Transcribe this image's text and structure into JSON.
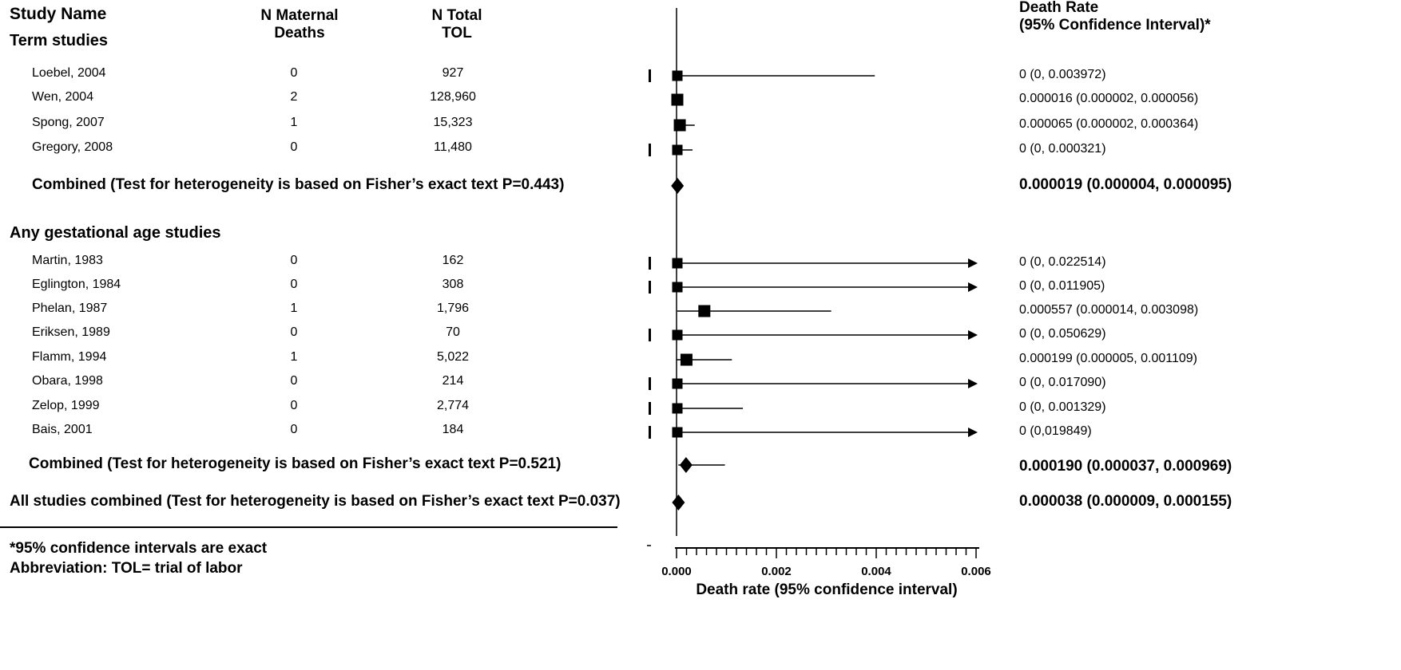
{
  "headers": {
    "study_name": "Study Name",
    "n_maternal_deaths": [
      "N Maternal",
      "Deaths"
    ],
    "n_total_tol": [
      "N Total",
      "TOL"
    ],
    "death_rate": [
      "Death Rate",
      "(95% Confidence Interval)*"
    ]
  },
  "sections": {
    "term": "Term studies",
    "any": "Any gestational age studies"
  },
  "combined_labels": {
    "term": "Combined (Test for heterogeneity is based on Fisher’s exact text P=0.443)",
    "any": "Combined (Test for heterogeneity is based on Fisher’s exact text P=0.521)",
    "all": "All studies combined (Test for heterogeneity is based on Fisher’s exact text P=0.037)"
  },
  "footnotes": [
    "*95% confidence intervals are exact",
    "Abbreviation: TOL= trial of labor"
  ],
  "chart_data": {
    "type": "forest",
    "xlabel": "Death rate  (95% confidence interval)",
    "xlim": [
      0,
      0.006
    ],
    "xticks": [
      "0.000",
      "0.002",
      "0.004",
      "0.006"
    ],
    "minor_tick_step": 0.0002,
    "studies": [
      {
        "study": "Loebel, 2004",
        "deaths": "0",
        "tol": "927",
        "rate": 0,
        "lo": 0,
        "hi": 0.003972,
        "ci_text": "0 (0, 0.003972)",
        "group": "term",
        "arrow": false
      },
      {
        "study": "Wen,  2004",
        "deaths": "2",
        "tol": "128,960",
        "rate": 1.6e-05,
        "lo": 2e-06,
        "hi": 5.6e-05,
        "ci_text": "0.000016 (0.000002,  0.000056)",
        "group": "term",
        "arrow": false
      },
      {
        "study": "Spong, 2007",
        "deaths": "1",
        "tol": "15,323",
        "rate": 6.5e-05,
        "lo": 2e-06,
        "hi": 0.000364,
        "ci_text": "0.000065 (0.000002,  0.000364)",
        "group": "term",
        "arrow": false
      },
      {
        "study": "Gregory, 2008",
        "deaths": "0",
        "tol": "11,480",
        "rate": 0,
        "lo": 0,
        "hi": 0.000321,
        "ci_text": "0 (0, 0.000321)",
        "group": "term",
        "arrow": false
      },
      {
        "study": "Martin, 1983",
        "deaths": "0",
        "tol": "162",
        "rate": 0,
        "lo": 0,
        "hi": 0.022514,
        "ci_text": "0 (0, 0.022514)",
        "group": "any",
        "arrow": true
      },
      {
        "study": "Eglington, 1984",
        "deaths": "0",
        "tol": "308",
        "rate": 0,
        "lo": 0,
        "hi": 0.011905,
        "ci_text": "0 (0, 0.011905)",
        "group": "any",
        "arrow": true
      },
      {
        "study": "Phelan, 1987",
        "deaths": "1",
        "tol": "1,796",
        "rate": 0.000557,
        "lo": 1.4e-05,
        "hi": 0.003098,
        "ci_text": "0.000557 (0.000014,  0.003098)",
        "group": "any",
        "arrow": false
      },
      {
        "study": "Eriksen, 1989",
        "deaths": "0",
        "tol": "70",
        "rate": 0,
        "lo": 0,
        "hi": 0.050629,
        "ci_text": "0 (0, 0.050629)",
        "group": "any",
        "arrow": true
      },
      {
        "study": "Flamm, 1994",
        "deaths": "1",
        "tol": "5,022",
        "rate": 0.000199,
        "lo": 5e-06,
        "hi": 0.001109,
        "ci_text": "0.000199 (0.000005,  0.001109)",
        "group": "any",
        "arrow": false
      },
      {
        "study": "Obara, 1998",
        "deaths": "0",
        "tol": "214",
        "rate": 0,
        "lo": 0,
        "hi": 0.01709,
        "ci_text": "0 (0, 0.017090)",
        "group": "any",
        "arrow": true
      },
      {
        "study": "Zelop, 1999",
        "deaths": "0",
        "tol": "2,774",
        "rate": 0,
        "lo": 0,
        "hi": 0.001329,
        "ci_text": "0 (0, 0.001329)",
        "group": "any",
        "arrow": false
      },
      {
        "study": "Bais, 2001",
        "deaths": "0",
        "tol": "184",
        "rate": 0,
        "lo": 0,
        "hi": 0.019849,
        "ci_text": "0 (0,019849)",
        "group": "any",
        "arrow": true
      }
    ],
    "combined": [
      {
        "label_key": "term",
        "rate": 1.9e-05,
        "lo": 4e-06,
        "hi": 9.5e-05,
        "ci_text": "0.000019 (0.000004, 0.000095)"
      },
      {
        "label_key": "any",
        "rate": 0.00019,
        "lo": 3.7e-05,
        "hi": 0.000969,
        "ci_text": "0.000190 (0.000037, 0.000969)"
      },
      {
        "label_key": "all",
        "rate": 3.8e-05,
        "lo": 9e-06,
        "hi": 0.000155,
        "ci_text": "0.000038 (0.000009, 0.000155)"
      }
    ]
  }
}
